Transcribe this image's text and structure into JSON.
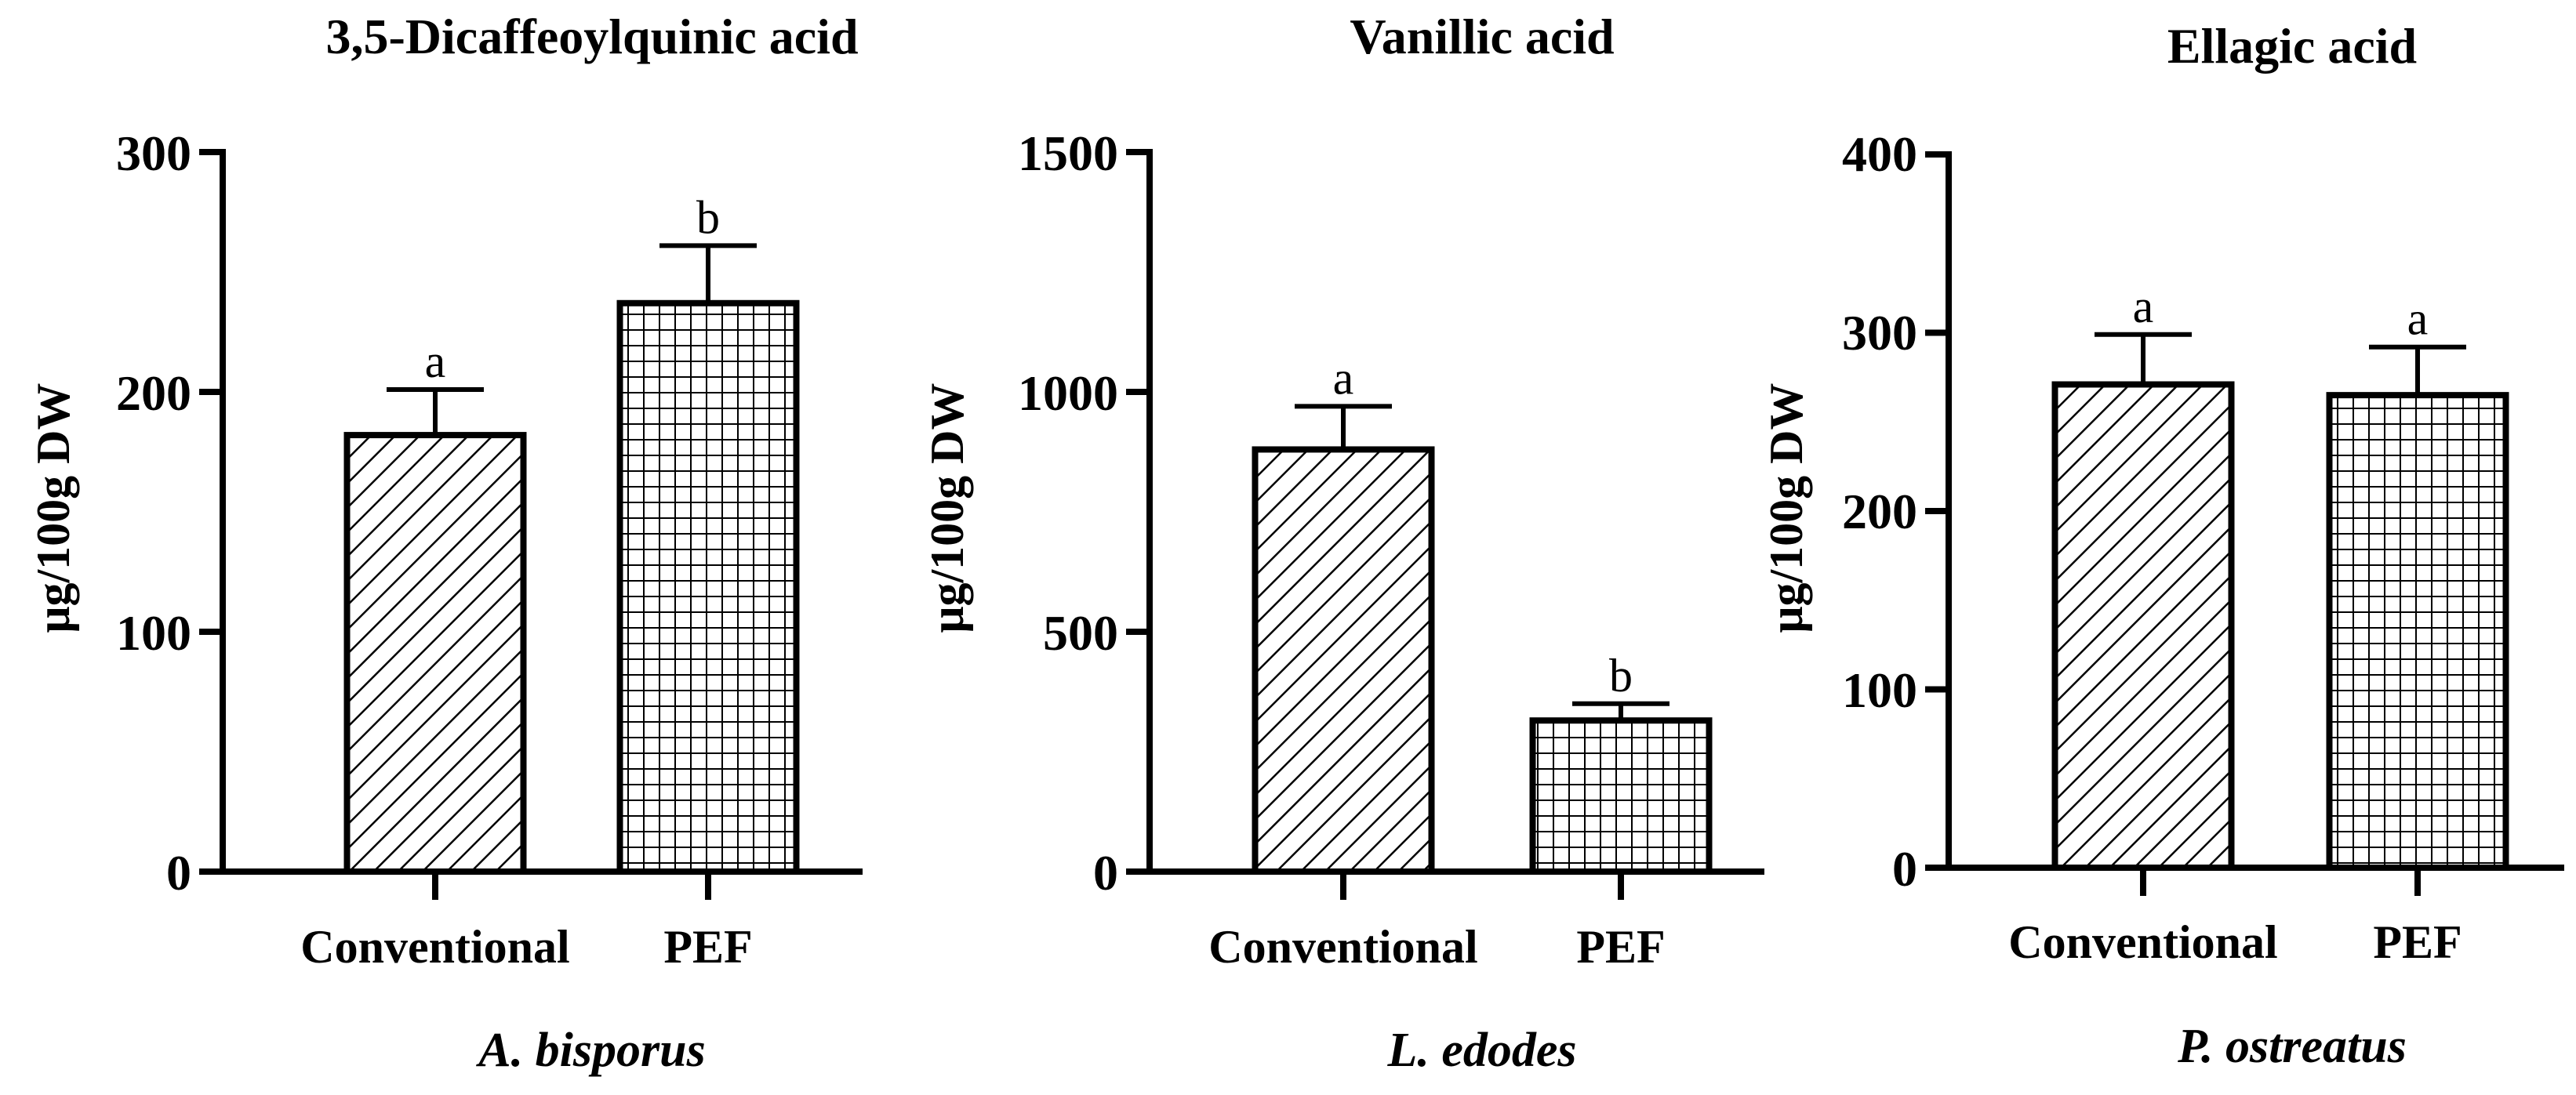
{
  "chart_data": [
    {
      "type": "bar",
      "title": "3,5-Dicaffeoylquinic acid",
      "ylabel": "μg/100g DW",
      "xlabel": "A. bisporus",
      "categories": [
        "Conventional",
        "PEF"
      ],
      "values": [
        182,
        237
      ],
      "errors": [
        19,
        24
      ],
      "significance": [
        "a",
        "b"
      ],
      "patterns": [
        "diagonal-hatch",
        "crosshatch"
      ],
      "ylim": [
        0,
        300
      ],
      "yticks": [
        0,
        100,
        200,
        300
      ],
      "ytick_labels": [
        "0",
        "100",
        "200",
        "300"
      ]
    },
    {
      "type": "bar",
      "title": "Vanillic acid",
      "ylabel": "μg/100g DW",
      "xlabel": "L. edodes",
      "categories": [
        "Conventional",
        "PEF"
      ],
      "values": [
        880,
        315
      ],
      "errors": [
        90,
        35
      ],
      "significance": [
        "a",
        "b"
      ],
      "patterns": [
        "diagonal-hatch",
        "crosshatch"
      ],
      "ylim": [
        0,
        1500
      ],
      "yticks": [
        0,
        500,
        1000,
        1500
      ],
      "ytick_labels": [
        "0",
        "500",
        "1000",
        "1500"
      ]
    },
    {
      "type": "bar",
      "title": "Ellagic acid",
      "ylabel": "μg/100g DW",
      "xlabel": "P. ostreatus",
      "categories": [
        "Conventional",
        "PEF"
      ],
      "values": [
        271,
        265
      ],
      "errors": [
        28,
        27
      ],
      "significance": [
        "a",
        "a"
      ],
      "patterns": [
        "diagonal-hatch",
        "crosshatch"
      ],
      "ylim": [
        0,
        400
      ],
      "yticks": [
        0,
        100,
        200,
        300,
        400
      ],
      "ytick_labels": [
        "0",
        "100",
        "200",
        "300",
        "400"
      ]
    }
  ]
}
